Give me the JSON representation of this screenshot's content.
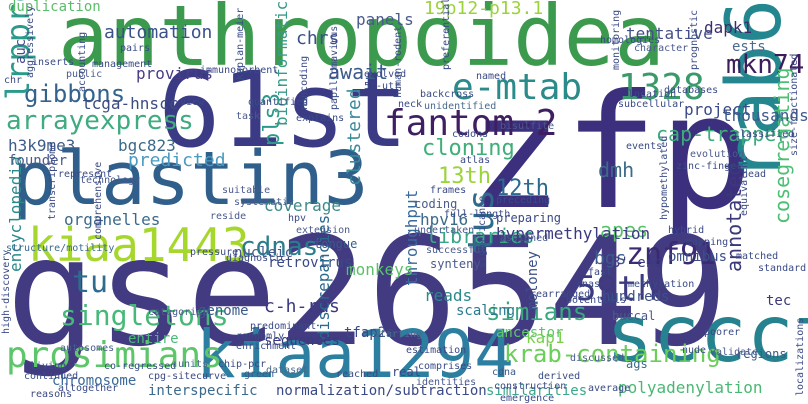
{
  "words": [
    {
      "text": "zfp",
      "color": "#3b2f7e"
    },
    {
      "text": "gse26549",
      "color": "#423b82"
    },
    {
      "text": "anthropoidea",
      "color": "#3c9a4e"
    },
    {
      "text": "plastin3",
      "color": "#2f5f8a"
    },
    {
      "text": "61st",
      "color": "#3b3a85"
    },
    {
      "text": "rab6c",
      "color": "#24868e"
    },
    {
      "text": "kiaa1294",
      "color": "#2c7fa0"
    },
    {
      "text": "sccct",
      "color": "#26828e"
    },
    {
      "text": "kiaa1443",
      "color": "#a6d72c"
    },
    {
      "text": "e-mtab",
      "color": "#2a8b8a"
    },
    {
      "text": "1328",
      "color": "#3b9a6c"
    },
    {
      "text": "fantom-2",
      "color": "#3e1f62"
    },
    {
      "text": "59th",
      "color": "#3d3a80"
    },
    {
      "text": "tus",
      "color": "#2e6b8a"
    },
    {
      "text": "prosimians",
      "color": "#5ec56a"
    },
    {
      "text": "krab-containing",
      "color": "#6cce5a"
    },
    {
      "text": "singletons",
      "color": "#46b877"
    },
    {
      "text": "cdnas",
      "color": "#2b7d8e"
    },
    {
      "text": "arrayexpress",
      "color": "#40ab80"
    },
    {
      "text": "gibbons",
      "color": "#33638d"
    },
    {
      "text": "znf91",
      "color": "#3a2a72"
    },
    {
      "text": "mkn74",
      "color": "#3d1d5c"
    },
    {
      "text": "lrpprc",
      "color": "#2a9a8a"
    },
    {
      "text": "tu",
      "color": "#2f6b8e"
    },
    {
      "text": "simians",
      "color": "#3aa87f"
    },
    {
      "text": "automation",
      "color": "#3a528b"
    },
    {
      "text": "duplication",
      "color": "#5bbd6a"
    },
    {
      "text": "chrs",
      "color": "#3c4f8a"
    },
    {
      "text": "panels",
      "color": "#4a5a8c"
    },
    {
      "text": "19p12-p13.1",
      "color": "#9bd33a"
    },
    {
      "text": "dapk1",
      "color": "#3b2d6a"
    },
    {
      "text": "tentative",
      "color": "#434e86"
    },
    {
      "text": "ests",
      "color": "#4d6a8e"
    },
    {
      "text": "await",
      "color": "#3c5a8a"
    },
    {
      "text": "provirus",
      "color": "#4c3c86"
    },
    {
      "text": "tcga-hnscc",
      "color": "#3c4c82"
    },
    {
      "text": "pls3",
      "color": "#2c9a8a"
    },
    {
      "text": "bioinformatic",
      "color": "#3a9a8a"
    },
    {
      "text": "h3k9me3",
      "color": "#3c5c8a"
    },
    {
      "text": "bgc823",
      "color": "#3d6a8c"
    },
    {
      "text": "predicted",
      "color": "#4a9bc0"
    },
    {
      "text": "auc",
      "color": "#4a4a90"
    },
    {
      "text": "cap-trapper",
      "color": "#3dab7c"
    },
    {
      "text": "cosegregating",
      "color": "#4bbf73"
    },
    {
      "text": "project",
      "color": "#3a4a84"
    },
    {
      "text": "thousands",
      "color": "#3d5a8c"
    },
    {
      "text": "cloning",
      "color": "#3fae78"
    },
    {
      "text": "13th",
      "color": "#9bd33a"
    },
    {
      "text": "12th",
      "color": "#2a6a8e"
    },
    {
      "text": "dmh",
      "color": "#3c6a8a"
    },
    {
      "text": "apes",
      "color": "#56c267"
    },
    {
      "text": "annotated",
      "color": "#3b3a78"
    },
    {
      "text": "coverage",
      "color": "#3d8a8a"
    },
    {
      "text": "clustered",
      "color": "#3a8a9a"
    },
    {
      "text": "throughput",
      "color": "#3a6a9a"
    },
    {
      "text": "hpv16",
      "color": "#3c6a8c"
    },
    {
      "text": "libraries",
      "color": "#38a888"
    },
    {
      "text": "hypermethylation",
      "color": "#3a3a80"
    },
    {
      "text": "omnibus",
      "color": "#3a5088"
    },
    {
      "text": "bgs",
      "color": "#3d5a8c"
    },
    {
      "text": "encyclopedia",
      "color": "#2a8a8a"
    },
    {
      "text": "organelles",
      "color": "#3c6a8c"
    },
    {
      "text": "founder",
      "color": "#4a5a8a"
    },
    {
      "text": "c-h-ras",
      "color": "#3b3a80"
    },
    {
      "text": "genome",
      "color": "#3a5a8a"
    },
    {
      "text": "monkeys",
      "color": "#5cc06a"
    },
    {
      "text": "reads",
      "color": "#2a8a8a"
    },
    {
      "text": "retrovirus",
      "color": "#3a4a88"
    },
    {
      "text": "nucleic",
      "color": "#4a5a8c"
    },
    {
      "text": "discrepancies",
      "color": "#2a6a8e"
    },
    {
      "text": "moloney",
      "color": "#3a5088"
    },
    {
      "text": "tfap2a",
      "color": "#3a4a86"
    },
    {
      "text": "3'-end",
      "color": "#3b3a80"
    },
    {
      "text": "kap1",
      "color": "#7ccf4c"
    },
    {
      "text": "tec",
      "color": "#3a3a78"
    },
    {
      "text": "scaling",
      "color": "#2a7a8e"
    },
    {
      "text": "hundreds",
      "color": "#3c5088"
    },
    {
      "text": "sequences",
      "color": "#3a3a80"
    },
    {
      "text": "entire",
      "color": "#4bb878"
    },
    {
      "text": "ancestor",
      "color": "#5ec56a"
    },
    {
      "text": "chromosome",
      "color": "#3a6a9a"
    },
    {
      "text": "interspecific",
      "color": "#3a6a8e"
    },
    {
      "text": "normalization/subtraction",
      "color": "#3a4a86"
    },
    {
      "text": "similarities",
      "color": "#3aa888"
    },
    {
      "text": "polyadenylation",
      "color": "#4ab874"
    },
    {
      "text": "structure/motility",
      "color": "#3a6a8c"
    },
    {
      "text": "high-discovery",
      "color": "#3a4a88"
    },
    {
      "text": "coding",
      "color": "#4a5a8c"
    },
    {
      "text": "preparing",
      "color": "#3a4a86"
    },
    {
      "text": "synteny",
      "color": "#4a5a8c"
    },
    {
      "text": "tongue",
      "color": "#3a5a8a"
    },
    {
      "text": "extension",
      "color": "#4a5a8c"
    },
    {
      "text": "undertaken",
      "color": "#4a5a8c"
    },
    {
      "text": "cdna",
      "color": "#3a5a8a"
    },
    {
      "text": "ags",
      "color": "#3a6a8a"
    },
    {
      "text": "regions",
      "color": "#3a5a8a"
    },
    {
      "text": "buccal",
      "color": "#4a5a8a"
    },
    {
      "text": "real",
      "color": "#3a4a86"
    },
    {
      "text": "fast",
      "color": "#3a4a86"
    },
    {
      "text": "living",
      "color": "#3a4a86"
    },
    {
      "text": "green",
      "color": "#3a5a8a"
    },
    {
      "text": "dataset",
      "color": "#4a6a8c"
    },
    {
      "text": "autosomes",
      "color": "#4a5a8c"
    },
    {
      "text": "units",
      "color": "#4a6a8c"
    },
    {
      "text": "estimation",
      "color": "#3a4a86"
    },
    {
      "text": "5'-utr",
      "color": "#3a4a86"
    },
    {
      "text": "neck",
      "color": "#3a4a86"
    },
    {
      "text": "evolved",
      "color": "#3a4a86"
    },
    {
      "text": "named",
      "color": "#3a4a86"
    },
    {
      "text": "chr",
      "color": "#3a4a86"
    },
    {
      "text": "view",
      "color": "#3a4a86"
    },
    {
      "text": "task",
      "color": "#4a5a8c"
    },
    {
      "text": "quantified",
      "color": "#3a4a86"
    },
    {
      "text": "represent",
      "color": "#3a4a86"
    },
    {
      "text": "technology",
      "color": "#4a5a8c"
    },
    {
      "text": "inserts",
      "color": "#3a4a86"
    },
    {
      "text": "public",
      "color": "#4a5a8c"
    },
    {
      "text": "management",
      "color": "#3a4a86"
    },
    {
      "text": "immunosorbent",
      "color": "#3a4a86"
    },
    {
      "text": "backcross",
      "color": "#3a4a86"
    },
    {
      "text": "unidentified",
      "color": "#4a6a8c"
    },
    {
      "text": "atlas",
      "color": "#3a4a86"
    },
    {
      "text": "frames",
      "color": "#3a4a86"
    },
    {
      "text": "assigned",
      "color": "#4a5a8c"
    },
    {
      "text": "successful",
      "color": "#4a5a8c"
    },
    {
      "text": "mapping",
      "color": "#3a4a86"
    },
    {
      "text": "evolution",
      "color": "#4a5a8c"
    },
    {
      "text": "zinc-finger",
      "color": "#3a4a86"
    },
    {
      "text": "classified",
      "color": "#3a4a86"
    },
    {
      "text": "databases",
      "color": "#3a4a86"
    },
    {
      "text": "homologies",
      "color": "#3a4a86"
    },
    {
      "text": "character",
      "color": "#4a5a8c"
    },
    {
      "text": "prognostic",
      "color": "#3a4a86"
    },
    {
      "text": "monitoring",
      "color": "#3a4a86"
    },
    {
      "text": "hybrid",
      "color": "#3a4a86"
    },
    {
      "text": "equivalent",
      "color": "#3a4a86"
    },
    {
      "text": "hypomethylated",
      "color": "#3a4a86"
    },
    {
      "text": "localizations",
      "color": "#3a4a86"
    },
    {
      "text": "discussed",
      "color": "#4a5a8c"
    },
    {
      "text": "nude",
      "color": "#3a4a86"
    },
    {
      "text": "poorer",
      "color": "#3a4a86"
    },
    {
      "text": "average",
      "color": "#3a4a86"
    },
    {
      "text": "identities",
      "color": "#4a5a8c"
    },
    {
      "text": "emergence",
      "color": "#3a4a86"
    },
    {
      "text": "comprises",
      "color": "#3a4a86"
    },
    {
      "text": "reached",
      "color": "#3a4a86"
    },
    {
      "text": "reasons",
      "color": "#3a4a86"
    },
    {
      "text": "cpg-site",
      "color": "#3a4a86"
    },
    {
      "text": "curve",
      "color": "#3a4a86"
    },
    {
      "text": "enrichment",
      "color": "#3a4a86"
    },
    {
      "text": "predominant",
      "color": "#3a4a86"
    },
    {
      "text": "categories",
      "color": "#4a5a8c"
    },
    {
      "text": "randomly",
      "color": "#3a4a86"
    },
    {
      "text": "starting",
      "color": "#4a6a8c"
    },
    {
      "text": "derived",
      "color": "#3a4a86"
    },
    {
      "text": "validate",
      "color": "#4a5a8c"
    },
    {
      "text": "standard",
      "color": "#3a4a86"
    },
    {
      "text": "subcellular",
      "color": "#3a4a86"
    },
    {
      "text": "papillomavirus",
      "color": "#3a4a86"
    },
    {
      "text": "noncoding",
      "color": "#3a4a86"
    },
    {
      "text": "human-rodent",
      "color": "#3a4a86"
    },
    {
      "text": "accounting",
      "color": "#3a4a86"
    },
    {
      "text": "aggressively",
      "color": "#3a4a86"
    },
    {
      "text": "kaplan-meier",
      "color": "#3a4a86"
    },
    {
      "text": "codons",
      "color": "#3a4a86"
    },
    {
      "text": "bisulfite",
      "color": "#4a5a8c"
    },
    {
      "text": "explains",
      "color": "#3a4a86"
    },
    {
      "text": "suitable",
      "color": "#4a5a8c"
    },
    {
      "text": "systematic",
      "color": "#4a5a8c"
    },
    {
      "text": "hpv",
      "color": "#3a4a86"
    },
    {
      "text": "reside",
      "color": "#4a5a8c"
    },
    {
      "text": "pairs",
      "color": "#3a4a86"
    },
    {
      "text": "location",
      "color": "#3a4a86"
    },
    {
      "text": "full-length",
      "color": "#3a4a86"
    },
    {
      "text": "preceding",
      "color": "#3a4a86"
    },
    {
      "text": "matched",
      "color": "#3a4a86"
    },
    {
      "text": "head",
      "color": "#3a4a86"
    },
    {
      "text": "size-fractionated",
      "color": "#3a4a86"
    },
    {
      "text": "transcriptome",
      "color": "#3a4a86"
    },
    {
      "text": "comprehensive",
      "color": "#3a4a86"
    },
    {
      "text": "diagnostic",
      "color": "#3a4a86"
    },
    {
      "text": "pressure",
      "color": "#3a4a86"
    },
    {
      "text": "altogether",
      "color": "#3a4a86"
    },
    {
      "text": "continued",
      "color": "#3a4a86"
    },
    {
      "text": "co-regressed",
      "color": "#3a4a86"
    },
    {
      "text": "construction",
      "color": "#3a4a86"
    },
    {
      "text": "chip-pcr",
      "color": "#3a4a86"
    },
    {
      "text": "methylation",
      "color": "#3a4a86"
    },
    {
      "text": "potentials",
      "color": "#3a4a86"
    },
    {
      "text": "events",
      "color": "#3a4a86"
    },
    {
      "text": "rearranged",
      "color": "#3a4a86"
    },
    {
      "text": "rnas",
      "color": "#3a4a86"
    },
    {
      "text": "preferentially",
      "color": "#3a4a86"
    },
    {
      "text": "significance",
      "color": "#3a4a86"
    }
  ]
}
